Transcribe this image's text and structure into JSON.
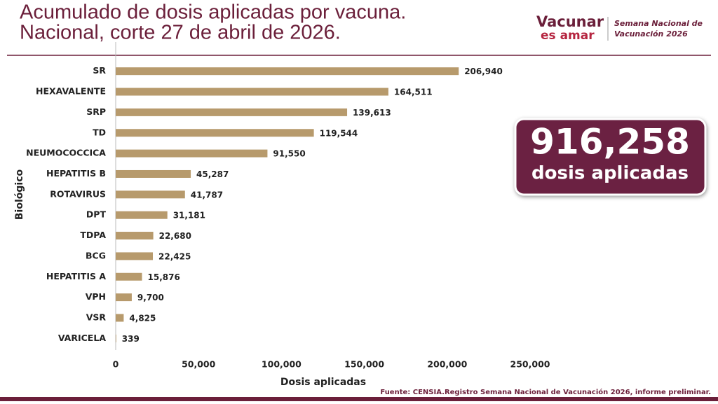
{
  "header": {
    "logo_top": "Vacunar",
    "logo_bottom": "es amar",
    "campaign_line1": "Semana Nacional de",
    "campaign_line2": "Vacunación 2026"
  },
  "highlight": {
    "total": "916,258",
    "caption": "dosis aplicadas"
  },
  "source": "Fuente: CENSIA.Registro Semana Nacional de Vacunación 2026, informe preliminar.",
  "chart_data": {
    "type": "hbar",
    "title": [
      "Acumulado de dosis aplicadas por vacuna.",
      "Nacional, corte 27 de abril de 2026."
    ],
    "xlabel": "Dosis aplicadas",
    "ylabel": "Biológico",
    "categories": [
      "SR",
      "HEXAVALENTE",
      "SRP",
      "TD",
      "NEUMOCOCCICA",
      "HEPATITIS B",
      "ROTAVIRUS",
      "DPT",
      "TDPA",
      "BCG",
      "HEPATITIS A",
      "VPH",
      "VSR",
      "VARICELA"
    ],
    "values": [
      206940,
      164511,
      139613,
      119544,
      91550,
      45287,
      41787,
      31181,
      22680,
      22425,
      15876,
      9700,
      4825,
      339
    ],
    "value_labels": [
      "206,940",
      "164,511",
      "139,613",
      "119,544",
      "91,550",
      "45,287",
      "41,787",
      "31,181",
      "22,680",
      "22,425",
      "15,876",
      "9,700",
      "4,825",
      "339"
    ],
    "color": "#b79a6c",
    "xlim": [
      0,
      250000
    ],
    "xticks": [
      0,
      {
        "value": 50000,
        "label": "50,000"
      },
      {
        "value": 100000,
        "label": "100,000"
      },
      {
        "value": 150000,
        "label": "150,000"
      },
      {
        "value": 200000,
        "label": "200,000"
      },
      {
        "value": 250000,
        "label": "250,000"
      }
    ],
    "grid": false
  }
}
